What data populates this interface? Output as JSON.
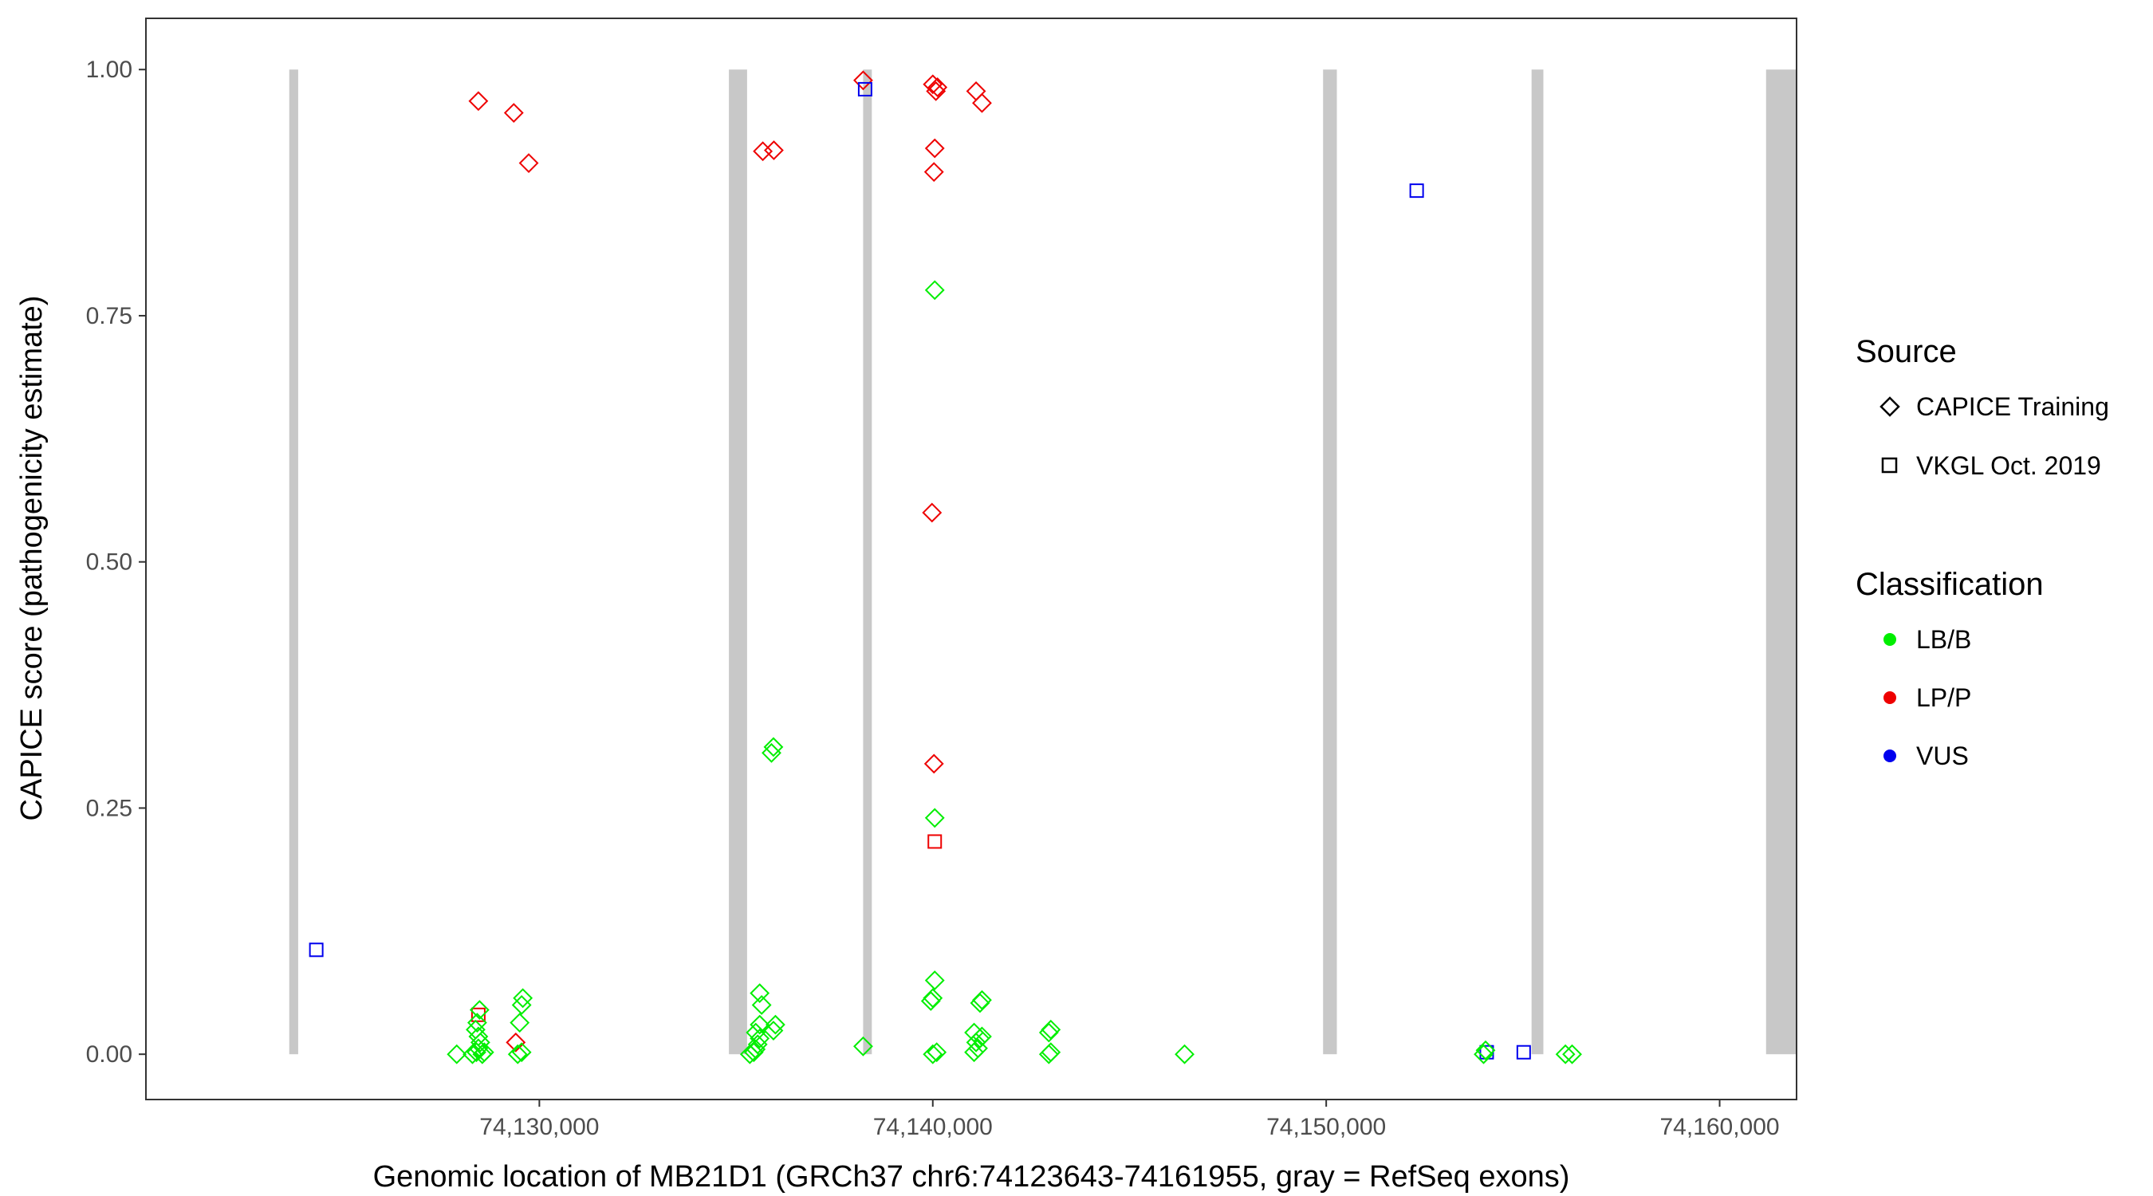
{
  "chart_data": {
    "type": "scatter",
    "xlabel": "Genomic location of MB21D1 (GRCh37 chr6:74123643-74161955, gray = RefSeq exons)",
    "ylabel": "CAPICE score (pathogenicity estimate)",
    "xlim": [
      74120000,
      74161955
    ],
    "ylim": [
      -0.046,
      1.052
    ],
    "x_ticks": [
      74130000,
      74140000,
      74150000,
      74160000
    ],
    "x_tick_labels": [
      "74,130,000",
      "74,140,000",
      "74,150,000",
      "74,160,000"
    ],
    "y_ticks": [
      0,
      0.25,
      0.5,
      0.75,
      1
    ],
    "y_tick_labels": [
      "0.00",
      "0.25",
      "0.50",
      "0.75",
      "1.00"
    ],
    "grid": false,
    "exons": [
      {
        "start": 74123643,
        "end": 74123870
      },
      {
        "start": 74134818,
        "end": 74135280
      },
      {
        "start": 74138230,
        "end": 74138450
      },
      {
        "start": 74149920,
        "end": 74150270
      },
      {
        "start": 74155220,
        "end": 74155520
      },
      {
        "start": 74161180,
        "end": 74161955
      }
    ],
    "exon_color": "#c8c8c8",
    "legend": {
      "placement": "right",
      "source": {
        "title": "Source",
        "items": [
          {
            "label": "CAPICE Training",
            "shape": "diamond"
          },
          {
            "label": "VKGL Oct. 2019",
            "shape": "square"
          }
        ]
      },
      "classification": {
        "title": "Classification",
        "items": [
          {
            "label": "LB/B",
            "color": "#00ee00"
          },
          {
            "label": "LP/P",
            "color": "#ee0000"
          },
          {
            "label": "VUS",
            "color": "#0000ee"
          }
        ]
      }
    },
    "series": [
      {
        "name": "CAPICE Training / LP/P",
        "shape": "diamond",
        "color": "#ee0000",
        "points": [
          [
            74128450,
            0.968
          ],
          [
            74129350,
            0.956
          ],
          [
            74129730,
            0.905
          ],
          [
            74135680,
            0.917
          ],
          [
            74135960,
            0.918
          ],
          [
            74138230,
            0.989
          ],
          [
            74140000,
            0.985
          ],
          [
            74140080,
            0.978
          ],
          [
            74140120,
            0.982
          ],
          [
            74140050,
            0.92
          ],
          [
            74140030,
            0.896
          ],
          [
            74141100,
            0.978
          ],
          [
            74141250,
            0.966
          ],
          [
            74139980,
            0.55
          ],
          [
            74140030,
            0.295
          ],
          [
            74129400,
            0.012
          ]
        ]
      },
      {
        "name": "VKGL Oct. 2019 / VUS",
        "shape": "square",
        "color": "#0000ee",
        "points": [
          [
            74124330,
            0.106
          ],
          [
            74138280,
            0.98
          ],
          [
            74152300,
            0.877
          ],
          [
            74154080,
            0.002
          ],
          [
            74155020,
            0.002
          ]
        ]
      },
      {
        "name": "VKGL Oct. 2019 / LP/P",
        "shape": "square",
        "color": "#ee0000",
        "points": [
          [
            74128450,
            0.04
          ],
          [
            74140050,
            0.216
          ]
        ]
      },
      {
        "name": "CAPICE Training / LB/B",
        "shape": "diamond",
        "color": "#00ee00",
        "points": [
          [
            74127900,
            0.0
          ],
          [
            74128300,
            0.0
          ],
          [
            74128400,
            0.002
          ],
          [
            74128450,
            0.006
          ],
          [
            74128500,
            0.012
          ],
          [
            74128450,
            0.018
          ],
          [
            74128380,
            0.025
          ],
          [
            74128420,
            0.032
          ],
          [
            74128480,
            0.045
          ],
          [
            74128550,
            0.0
          ],
          [
            74128600,
            0.002
          ],
          [
            74129450,
            0.0
          ],
          [
            74129550,
            0.002
          ],
          [
            74129500,
            0.032
          ],
          [
            74129550,
            0.05
          ],
          [
            74129580,
            0.057
          ],
          [
            74135350,
            0.0
          ],
          [
            74135450,
            0.002
          ],
          [
            74135500,
            0.005
          ],
          [
            74135550,
            0.01
          ],
          [
            74135600,
            0.016
          ],
          [
            74135500,
            0.022
          ],
          [
            74135600,
            0.03
          ],
          [
            74135650,
            0.05
          ],
          [
            74135600,
            0.062
          ],
          [
            74135950,
            0.024
          ],
          [
            74136000,
            0.03
          ],
          [
            74135900,
            0.306
          ],
          [
            74135950,
            0.312
          ],
          [
            74138230,
            0.008
          ],
          [
            74140000,
            0.0
          ],
          [
            74140100,
            0.002
          ],
          [
            74139950,
            0.054
          ],
          [
            74140000,
            0.057
          ],
          [
            74140050,
            0.075
          ],
          [
            74140050,
            0.24
          ],
          [
            74140050,
            0.776
          ],
          [
            74141050,
            0.002
          ],
          [
            74141150,
            0.006
          ],
          [
            74141100,
            0.012
          ],
          [
            74141200,
            0.016
          ],
          [
            74141250,
            0.018
          ],
          [
            74141050,
            0.022
          ],
          [
            74141200,
            0.052
          ],
          [
            74141250,
            0.055
          ],
          [
            74142950,
            0.0
          ],
          [
            74143000,
            0.002
          ],
          [
            74142950,
            0.022
          ],
          [
            74143000,
            0.025
          ],
          [
            74146400,
            0.0
          ],
          [
            74154000,
            0.0
          ],
          [
            74154050,
            0.004
          ],
          [
            74156080,
            0.0
          ],
          [
            74156250,
            0.0
          ]
        ]
      }
    ]
  }
}
